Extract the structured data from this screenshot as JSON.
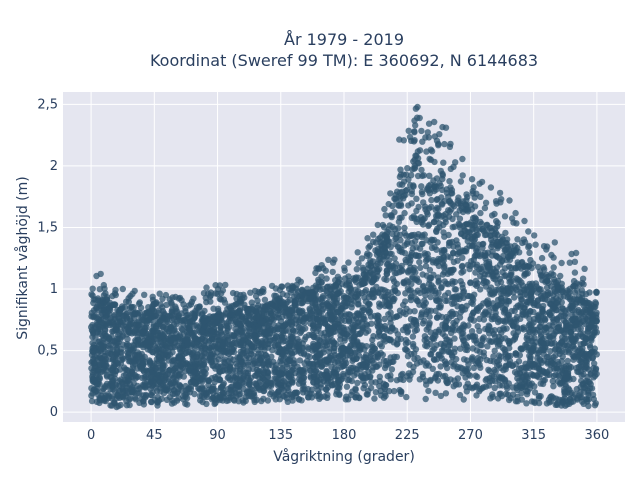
{
  "chart_data": {
    "type": "scatter",
    "title_lines": [
      "År 1979 - 2019",
      "Koordinat (Sweref 99 TM): E 360692, N 6144683"
    ],
    "xlabel": "Vågriktning (grader)",
    "ylabel": "Signifikant våghöjd (m)",
    "xlim": [
      -20,
      380
    ],
    "ylim": [
      -0.08,
      2.6
    ],
    "x_ticks": [
      0,
      45,
      90,
      135,
      180,
      225,
      270,
      315,
      360
    ],
    "x_tick_labels": [
      "0",
      "45",
      "90",
      "135",
      "180",
      "225",
      "270",
      "315",
      "360"
    ],
    "y_ticks": [
      0,
      0.5,
      1,
      1.5,
      2,
      2.5
    ],
    "y_tick_labels": [
      "0",
      "0,5",
      "1",
      "1,5",
      "2",
      "2,5"
    ],
    "grid": true,
    "marker_color": "#2f5570",
    "plot_background": "#e5e6f0",
    "series": [
      {
        "x": [
          0,
          5,
          10,
          20,
          30,
          45,
          60,
          75,
          90,
          105,
          120,
          135,
          150,
          165,
          180,
          190,
          200,
          210,
          220,
          230,
          240,
          250,
          260,
          270,
          280,
          290,
          300,
          315,
          330,
          345,
          355,
          360
        ],
        "y_min": [
          0.05,
          0.05,
          0.05,
          0.04,
          0.04,
          0.05,
          0.06,
          0.06,
          0.06,
          0.07,
          0.08,
          0.08,
          0.09,
          0.1,
          0.1,
          0.1,
          0.1,
          0.1,
          0.1,
          0.1,
          0.1,
          0.1,
          0.1,
          0.1,
          0.1,
          0.09,
          0.08,
          0.06,
          0.05,
          0.05,
          0.05,
          0.05
        ],
        "y_max": [
          1.0,
          1.17,
          1.05,
          1.0,
          1.0,
          0.97,
          0.95,
          0.95,
          1.1,
          0.95,
          1.0,
          1.05,
          1.1,
          1.25,
          1.25,
          1.35,
          1.45,
          1.7,
          2.3,
          2.5,
          2.45,
          2.4,
          2.15,
          2.05,
          1.95,
          1.8,
          1.7,
          1.45,
          1.4,
          1.3,
          1.1,
          1.0
        ],
        "y_dense_max": [
          0.9,
          0.9,
          0.88,
          0.85,
          0.8,
          0.8,
          0.78,
          0.78,
          0.8,
          0.82,
          0.85,
          0.88,
          0.95,
          1.0,
          1.05,
          1.1,
          1.2,
          1.5,
          1.9,
          2.0,
          1.95,
          1.85,
          1.75,
          1.65,
          1.55,
          1.4,
          1.3,
          1.15,
          1.05,
          0.95,
          0.9,
          0.88
        ]
      }
    ]
  }
}
